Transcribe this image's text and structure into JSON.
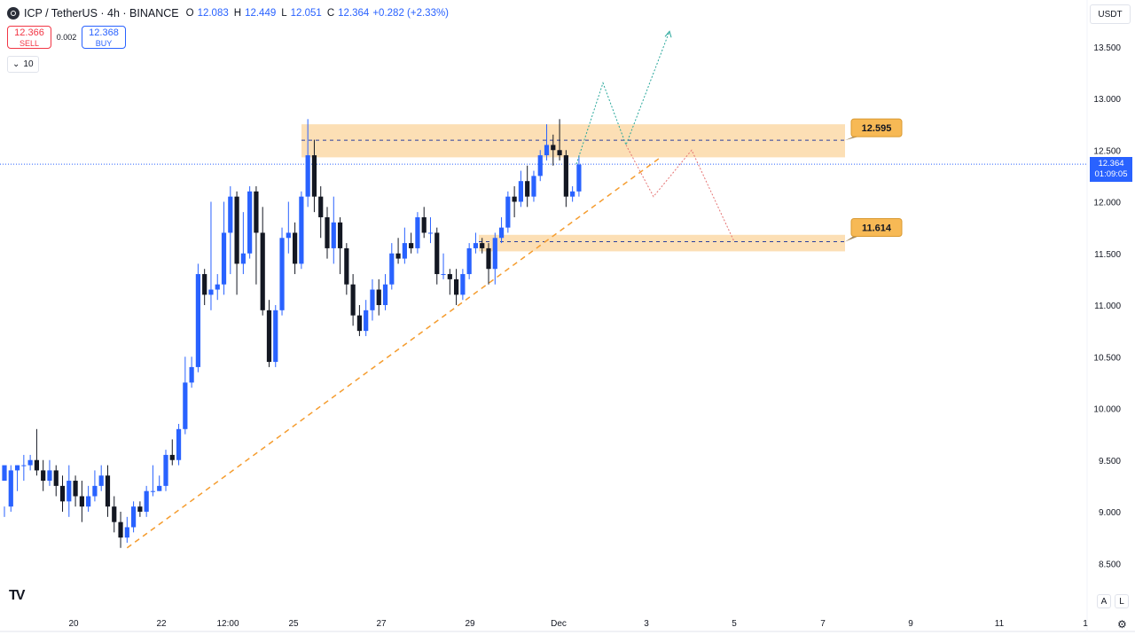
{
  "header": {
    "symbol_title": "ICP / TetherUS · 4h · BINANCE",
    "ohlc": [
      {
        "key": "O",
        "value": "12.083"
      },
      {
        "key": "H",
        "value": "12.449"
      },
      {
        "key": "L",
        "value": "12.051"
      },
      {
        "key": "C",
        "value": "12.364"
      }
    ],
    "change": "+0.282 (+2.33%)"
  },
  "trade": {
    "sell_price": "12.366",
    "sell_label": "SELL",
    "spread": "0.002",
    "buy_price": "12.368",
    "buy_label": "BUY"
  },
  "interval_indicator": "10",
  "currency": "USDT",
  "current_price": {
    "value": "12.364",
    "countdown": "01:09:05"
  },
  "price_axis": [
    "13.500",
    "13.000",
    "12.500",
    "12.000",
    "11.500",
    "11.000",
    "10.500",
    "10.000",
    "9.500",
    "9.000",
    "8.500"
  ],
  "time_axis": [
    "20",
    "22",
    "12:00",
    "25",
    "27",
    "29",
    "Dec",
    "3",
    "5",
    "7",
    "9",
    "11",
    "1"
  ],
  "bottom_buttons": {
    "auto": "A",
    "log": "L"
  },
  "colors": {
    "up": "#2962ff",
    "down": "#131722",
    "zone": "#fcd9a8",
    "trendline": "#f59c2e",
    "accent": "#2962ff",
    "sell": "#f23645",
    "label_bg": "#f7b955"
  },
  "chart_data": {
    "type": "candlestick",
    "symbol": "ICP / TetherUS",
    "timeframe": "4h",
    "ylim": [
      8.3,
      13.85
    ],
    "grid": false,
    "candles": [
      [
        9.3,
        9.45,
        9.05,
        8.95
      ],
      [
        9.05,
        9.4,
        9.45,
        9.0
      ],
      [
        9.4,
        9.45,
        9.45,
        9.2
      ],
      [
        9.45,
        9.45,
        9.55,
        9.3
      ],
      [
        9.45,
        9.5,
        9.55,
        9.4
      ],
      [
        9.5,
        9.4,
        9.8,
        9.35
      ],
      [
        9.4,
        9.3,
        9.5,
        9.2
      ],
      [
        9.3,
        9.4,
        9.5,
        9.25
      ],
      [
        9.4,
        9.25,
        9.45,
        9.15
      ],
      [
        9.25,
        9.1,
        9.35,
        9.0
      ],
      [
        9.1,
        9.3,
        9.45,
        8.95
      ],
      [
        9.3,
        9.15,
        9.35,
        9.05
      ],
      [
        9.15,
        9.05,
        9.3,
        8.9
      ],
      [
        9.05,
        9.15,
        9.25,
        9.0
      ],
      [
        9.15,
        9.25,
        9.4,
        9.1
      ],
      [
        9.25,
        9.35,
        9.45,
        9.2
      ],
      [
        9.35,
        9.05,
        9.45,
        8.95
      ],
      [
        9.05,
        8.9,
        9.15,
        8.8
      ],
      [
        8.9,
        8.75,
        9.0,
        8.65
      ],
      [
        8.75,
        8.85,
        8.95,
        8.7
      ],
      [
        8.85,
        9.05,
        9.1,
        8.8
      ],
      [
        9.05,
        9.0,
        9.1,
        8.95
      ],
      [
        9.0,
        9.2,
        9.25,
        8.95
      ],
      [
        9.2,
        9.2,
        9.45,
        9.15
      ],
      [
        9.2,
        9.25,
        9.35,
        9.2
      ],
      [
        9.25,
        9.55,
        9.6,
        9.2
      ],
      [
        9.55,
        9.5,
        9.7,
        9.45
      ],
      [
        9.5,
        9.8,
        9.85,
        9.45
      ],
      [
        9.8,
        10.25,
        10.5,
        9.75
      ],
      [
        10.25,
        10.4,
        10.5,
        10.2
      ],
      [
        10.4,
        11.3,
        11.4,
        10.35
      ],
      [
        11.3,
        11.1,
        11.35,
        11.0
      ],
      [
        11.1,
        11.15,
        12.0,
        10.95
      ],
      [
        11.15,
        11.2,
        11.3,
        11.05
      ],
      [
        11.2,
        11.7,
        12.0,
        11.1
      ],
      [
        11.7,
        12.05,
        12.15,
        11.3
      ],
      [
        12.05,
        11.4,
        12.1,
        11.1
      ],
      [
        11.4,
        11.5,
        11.9,
        11.3
      ],
      [
        11.5,
        12.1,
        12.15,
        11.45
      ],
      [
        12.1,
        11.7,
        12.15,
        11.2
      ],
      [
        11.7,
        10.95,
        11.95,
        10.9
      ],
      [
        10.95,
        10.45,
        11.05,
        10.4
      ],
      [
        10.45,
        10.95,
        11.0,
        10.4
      ],
      [
        10.95,
        11.65,
        11.75,
        10.9
      ],
      [
        11.65,
        11.7,
        12.0,
        11.5
      ],
      [
        11.7,
        11.4,
        11.8,
        11.3
      ],
      [
        11.4,
        12.05,
        12.1,
        11.35
      ],
      [
        12.05,
        12.45,
        12.8,
        11.95
      ],
      [
        12.45,
        12.05,
        12.6,
        11.9
      ],
      [
        12.05,
        11.85,
        12.15,
        11.65
      ],
      [
        11.85,
        11.55,
        11.95,
        11.45
      ],
      [
        11.55,
        11.8,
        12.05,
        11.4
      ],
      [
        11.8,
        11.55,
        11.85,
        11.3
      ],
      [
        11.55,
        11.2,
        11.6,
        11.1
      ],
      [
        11.2,
        10.9,
        11.3,
        10.8
      ],
      [
        10.9,
        10.75,
        11.0,
        10.7
      ],
      [
        10.75,
        10.95,
        11.05,
        10.7
      ],
      [
        10.95,
        11.15,
        11.25,
        10.85
      ],
      [
        11.15,
        11.0,
        11.25,
        10.9
      ],
      [
        11.0,
        11.2,
        11.3,
        10.95
      ],
      [
        11.2,
        11.5,
        11.6,
        11.15
      ],
      [
        11.5,
        11.45,
        11.65,
        11.4
      ],
      [
        11.45,
        11.6,
        11.75,
        11.4
      ],
      [
        11.6,
        11.55,
        11.7,
        11.5
      ],
      [
        11.55,
        11.85,
        11.9,
        11.5
      ],
      [
        11.85,
        11.7,
        11.95,
        11.65
      ],
      [
        11.7,
        11.7,
        11.85,
        11.6
      ],
      [
        11.7,
        11.3,
        11.75,
        11.2
      ],
      [
        11.3,
        11.3,
        11.5,
        11.25
      ],
      [
        11.3,
        11.25,
        11.35,
        11.1
      ],
      [
        11.25,
        11.1,
        11.35,
        11.0
      ],
      [
        11.1,
        11.3,
        11.35,
        11.05
      ],
      [
        11.3,
        11.55,
        11.6,
        11.25
      ],
      [
        11.55,
        11.6,
        11.7,
        11.5
      ],
      [
        11.6,
        11.55,
        11.65,
        11.5
      ],
      [
        11.55,
        11.35,
        11.6,
        11.2
      ],
      [
        11.35,
        11.65,
        11.7,
        11.2
      ],
      [
        11.65,
        11.75,
        11.85,
        11.6
      ],
      [
        11.75,
        12.05,
        12.1,
        11.7
      ],
      [
        12.05,
        12.0,
        12.15,
        11.85
      ],
      [
        12.0,
        12.2,
        12.3,
        11.95
      ],
      [
        12.2,
        12.05,
        12.35,
        11.95
      ],
      [
        12.05,
        12.25,
        12.3,
        12.0
      ],
      [
        12.25,
        12.45,
        12.5,
        12.2
      ],
      [
        12.45,
        12.55,
        12.75,
        12.4
      ],
      [
        12.55,
        12.5,
        12.65,
        12.35
      ],
      [
        12.5,
        12.45,
        12.8,
        12.4
      ],
      [
        12.45,
        12.05,
        12.5,
        11.95
      ],
      [
        12.05,
        12.1,
        12.15,
        12.0
      ],
      [
        12.1,
        12.36,
        12.45,
        12.05
      ]
    ],
    "zones": [
      {
        "label": "12.595",
        "top": 12.75,
        "bottom": 12.43,
        "level": 12.595
      },
      {
        "label": "11.614",
        "top": 11.68,
        "bottom": 11.52,
        "level": 11.614
      }
    ],
    "trendline": {
      "from": {
        "index": 19,
        "price": 8.65
      },
      "to": {
        "price": 12.43
      }
    },
    "projections": [
      {
        "color": "#26a69a",
        "path": [
          12.364,
          13.15,
          12.55,
          13.65
        ]
      },
      {
        "color": "#e57373",
        "path": [
          12.55,
          12.05,
          12.5,
          11.614
        ]
      }
    ]
  }
}
